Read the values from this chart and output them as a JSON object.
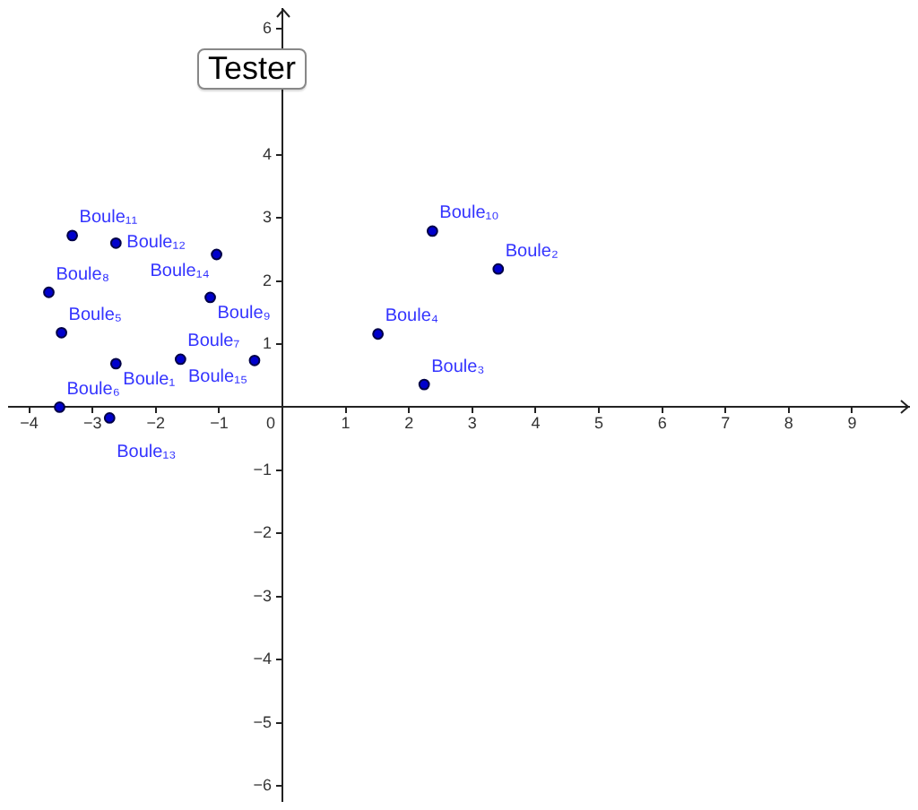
{
  "chart_data": {
    "type": "scatter",
    "x": [
      -2.63,
      3.41,
      2.24,
      1.51,
      -3.49,
      -3.52,
      -1.61,
      -3.69,
      -1.14,
      2.37,
      -3.32,
      -2.63,
      -2.73,
      -1.04,
      -0.44
    ],
    "values": [
      0.69,
      2.19,
      0.36,
      1.16,
      1.18,
      0,
      0.76,
      1.82,
      1.74,
      2.79,
      2.72,
      2.6,
      -0.17,
      2.42,
      0.74
    ],
    "color": "#0000cc",
    "marker": "circle",
    "grid": false,
    "xlim": [
      -4.32,
      9.9
    ],
    "ylim": [
      -6.24,
      6.31
    ],
    "xticks": [
      {
        "value": -4,
        "label": "−4"
      },
      {
        "value": -3,
        "label": "−3"
      },
      {
        "value": -2,
        "label": "−2"
      },
      {
        "value": -1,
        "label": "−1"
      },
      0,
      1,
      2,
      3,
      4,
      5,
      6,
      7,
      8,
      9
    ],
    "yticks": [
      {
        "value": -6,
        "label": "−6"
      },
      {
        "value": -5,
        "label": "−5"
      },
      {
        "value": -4,
        "label": "−4"
      },
      {
        "value": -3,
        "label": "−3"
      },
      {
        "value": -2,
        "label": "−2"
      },
      {
        "value": -1,
        "label": "−1"
      },
      1,
      2,
      3,
      4,
      6
    ],
    "annotations": [
      "Tester",
      {
        "text": "Boule₁",
        "x": -2.63,
        "y": 0.69
      },
      {
        "text": "Boule₂",
        "x": 3.41,
        "y": 2.19
      },
      {
        "text": "Boule₃",
        "x": 2.24,
        "y": 0.36
      },
      {
        "text": "Boule₄",
        "x": 1.51,
        "y": 1.16
      },
      {
        "text": "Boule₅",
        "x": -3.49,
        "y": 1.18
      },
      {
        "text": "Boule₆",
        "x": -3.52,
        "y": 0
      },
      {
        "text": "Boule₇",
        "x": -1.61,
        "y": 0.76
      },
      {
        "text": "Boule₈",
        "x": -3.69,
        "y": 1.82
      },
      {
        "text": "Boule₉",
        "x": -1.14,
        "y": 1.74
      },
      {
        "text": "Boule₁₀",
        "x": 2.37,
        "y": 2.79
      },
      {
        "text": "Boule₁₁",
        "x": -3.32,
        "y": 2.72
      },
      {
        "text": "Boule₁₂",
        "x": -2.63,
        "y": 2.6
      },
      {
        "text": "Boule₁₃",
        "x": -2.73,
        "y": -0.17
      },
      {
        "text": "Boule₁₄",
        "x": -1.04,
        "y": 2.42
      },
      {
        "text": "Boule₁₅",
        "x": -0.44,
        "y": 0.74
      }
    ]
  }
}
